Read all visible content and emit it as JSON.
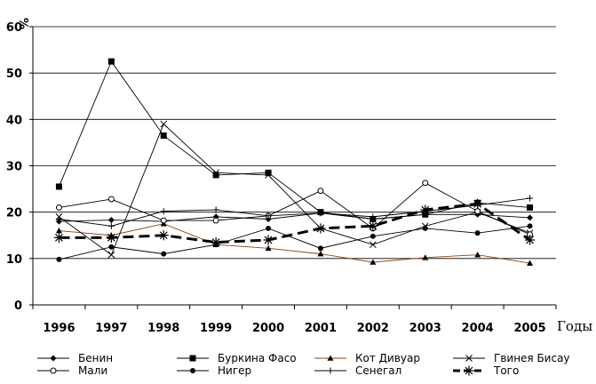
{
  "chart_data": {
    "type": "line",
    "title": "",
    "xlabel": "Годы",
    "ylabel": "%",
    "ylim": [
      0,
      60
    ],
    "yticks": [
      0,
      10,
      20,
      30,
      40,
      50,
      60
    ],
    "grid": "horizontal",
    "legend_position": "bottom",
    "x": [
      "1996",
      "1997",
      "1998",
      "1999",
      "2000",
      "2001",
      "2002",
      "2003",
      "2004",
      "2005"
    ],
    "series": [
      {
        "name": "Бенин",
        "color": "#000000",
        "marker": "diamond",
        "dash": "solid",
        "values": [
          18,
          18.3,
          18,
          19,
          18.5,
          19.8,
          18.5,
          19.5,
          19.5,
          18.8
        ]
      },
      {
        "name": "Буркина Фасо",
        "color": "#000000",
        "marker": "square",
        "dash": "solid",
        "values": [
          25.5,
          52.5,
          36.5,
          28,
          28.5,
          20,
          18.5,
          19.5,
          22,
          21
        ]
      },
      {
        "name": "Кот Дивуар",
        "color": "#8b4513",
        "marker": "triangle",
        "dash": "solid",
        "values": [
          16,
          15,
          17.5,
          13,
          12.2,
          11,
          9.2,
          10.2,
          10.8,
          9
        ]
      },
      {
        "name": "Гвинея Бисау",
        "color": "#000000",
        "marker": "x",
        "dash": "solid",
        "values": [
          19,
          10.8,
          39,
          28.5,
          28,
          16.5,
          13,
          17,
          20,
          15.5
        ]
      },
      {
        "name": "Мали",
        "color": "#000000",
        "marker": "circle-open",
        "dash": "solid",
        "values": [
          21,
          22.8,
          18.2,
          18.2,
          19.2,
          24.6,
          16.5,
          26.3,
          20.2,
          15.2
        ]
      },
      {
        "name": "Нигер",
        "color": "#000000",
        "marker": "circle",
        "dash": "solid",
        "values": [
          9.8,
          12.5,
          11,
          13,
          16.5,
          12.2,
          14.8,
          16.5,
          15.5,
          17
        ]
      },
      {
        "name": "Сенегал",
        "color": "#000000",
        "marker": "plus",
        "dash": "solid",
        "values": [
          18.5,
          17,
          20.2,
          20.5,
          19.2,
          19.8,
          19,
          20.2,
          21.5,
          23
        ]
      },
      {
        "name": "Того",
        "color": "#000000",
        "marker": "star",
        "dash": "dashed",
        "values": [
          14.5,
          14.5,
          15,
          13.5,
          14,
          16.5,
          17,
          20.5,
          21.8,
          14
        ]
      }
    ]
  }
}
